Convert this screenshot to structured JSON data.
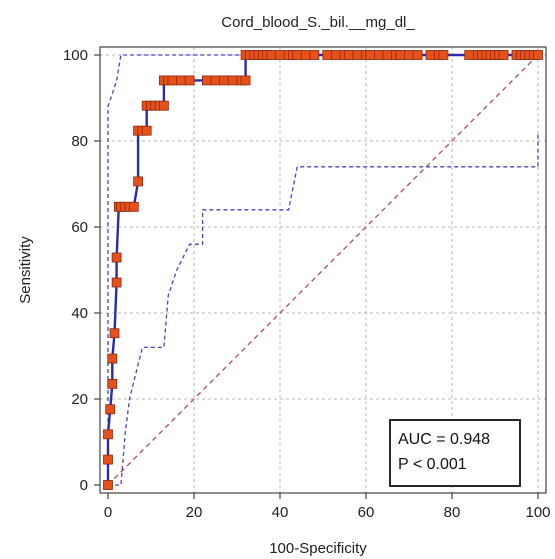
{
  "chart_data": {
    "type": "line",
    "title": "Cord_blood_S._bil.__mg_dl_",
    "xlabel": "100-Specificity",
    "ylabel": "Sensitivity",
    "xlim": [
      0,
      100
    ],
    "ylim": [
      0,
      100
    ],
    "xticks": [
      0,
      20,
      40,
      60,
      80,
      100
    ],
    "yticks": [
      0,
      20,
      40,
      60,
      80,
      100
    ],
    "grid": true,
    "annotation": [
      "AUC = 0.948",
      "P < 0.001"
    ],
    "colors": {
      "roc": "#2b2ba8",
      "marker_fill": "#e8501a",
      "marker_edge": "#8a2a10",
      "ci": "#4646c0",
      "diagonal": "#b05050",
      "grid": "#b8b8b8"
    },
    "series": [
      {
        "role": "roc",
        "x": [
          0,
          0,
          0,
          0.5,
          1,
          1,
          1.5,
          2,
          2,
          2.5,
          3,
          4,
          5,
          6,
          7,
          7,
          8,
          9,
          9,
          10,
          11,
          12,
          13,
          13,
          14,
          15,
          17,
          19,
          23,
          25,
          27,
          29,
          31,
          32,
          32,
          33,
          34,
          35,
          36,
          37,
          38,
          40,
          42,
          43,
          44,
          46,
          48,
          51,
          53,
          55,
          56,
          58,
          60,
          61,
          63,
          65,
          67,
          68,
          70,
          72,
          75,
          77,
          78,
          84,
          86,
          87,
          88,
          89,
          90,
          91,
          92,
          95,
          96,
          97,
          98,
          99,
          100
        ],
        "y": [
          0,
          5.9,
          11.8,
          17.6,
          23.5,
          29.4,
          35.3,
          47.1,
          52.9,
          64.7,
          64.7,
          64.7,
          64.7,
          64.7,
          70.6,
          82.4,
          82.4,
          82.4,
          88.2,
          88.2,
          88.2,
          88.2,
          88.2,
          94.1,
          94.1,
          94.1,
          94.1,
          94.1,
          94.1,
          94.1,
          94.1,
          94.1,
          94.1,
          94.1,
          100,
          100,
          100,
          100,
          100,
          100,
          100,
          100,
          100,
          100,
          100,
          100,
          100,
          100,
          100,
          100,
          100,
          100,
          100,
          100,
          100,
          100,
          100,
          100,
          100,
          100,
          100,
          100,
          100,
          100,
          100,
          100,
          100,
          100,
          100,
          100,
          100,
          100,
          100,
          100,
          100,
          100,
          100
        ]
      },
      {
        "role": "ci-upper",
        "x": [
          0,
          0,
          2,
          3,
          4,
          100
        ],
        "y": [
          0,
          88,
          94,
          100,
          100,
          100
        ]
      },
      {
        "role": "ci-lower",
        "x": [
          0,
          3,
          4,
          5,
          8,
          13,
          14,
          16,
          19,
          22,
          22,
          25,
          42,
          44,
          100,
          100
        ],
        "y": [
          0,
          0,
          12,
          20,
          32,
          32,
          44,
          50,
          56,
          56,
          64,
          64,
          64,
          74,
          74,
          82
        ]
      },
      {
        "role": "chance",
        "x": [
          0,
          100
        ],
        "y": [
          0,
          100
        ]
      }
    ]
  }
}
